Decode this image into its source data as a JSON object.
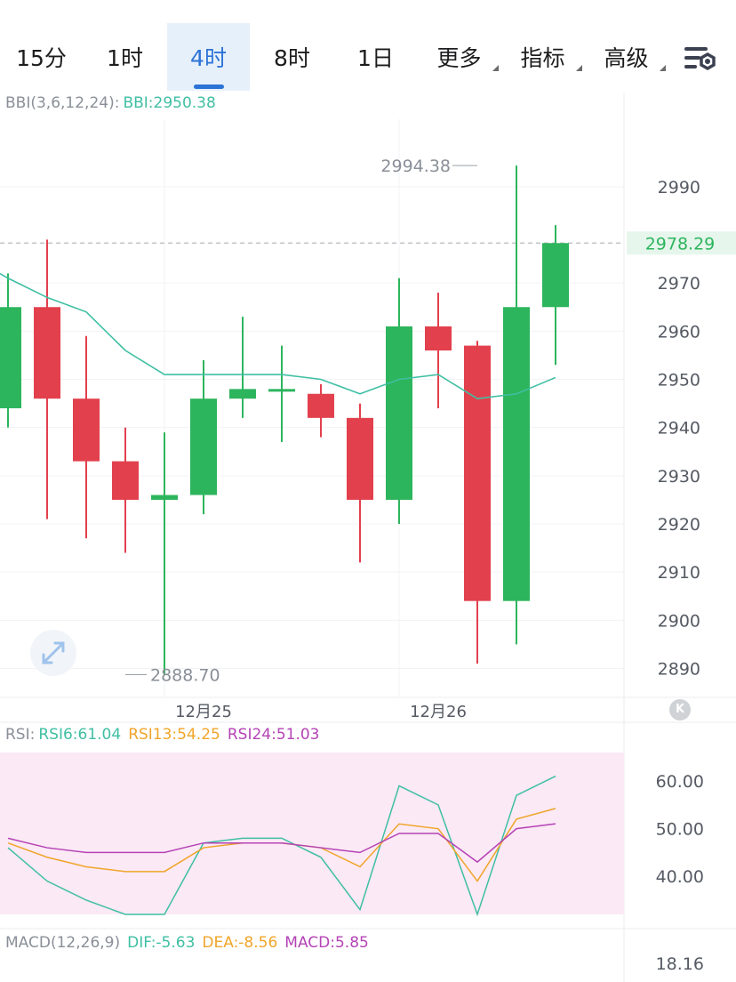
{
  "tabs": [
    {
      "label": "15分",
      "active": false,
      "dropdown": false
    },
    {
      "label": "1时",
      "active": false,
      "dropdown": false
    },
    {
      "label": "4时",
      "active": true,
      "dropdown": false
    },
    {
      "label": "8时",
      "active": false,
      "dropdown": false
    },
    {
      "label": "1日",
      "active": false,
      "dropdown": false
    },
    {
      "label": "更多",
      "active": false,
      "dropdown": true
    },
    {
      "label": "指标",
      "active": false,
      "dropdown": true
    },
    {
      "label": "高级",
      "active": false,
      "dropdown": true
    }
  ],
  "icons": {
    "settings": "chart-settings-icon",
    "expand": "expand-arrows-icon",
    "collapse": "collapse-chevron-icon"
  },
  "colors": {
    "up": "#2db55d",
    "down": "#e2404d",
    "bbi": "#3fbfa3",
    "rsi6": "#3fbfa3",
    "rsi13": "#f0a52a",
    "rsi24": "#b543b5",
    "accent": "#2b73d6"
  },
  "main_legend": {
    "name": "BBI(3,6,12,24):",
    "value": "BBI:2950.38"
  },
  "rsi_legend": {
    "name": "RSI:",
    "rsi6": "RSI6:61.04",
    "rsi13": "RSI13:54.25",
    "rsi24": "RSI24:51.03"
  },
  "macd_legend": {
    "name": "MACD(12,26,9)",
    "dif": "DIF:-5.63",
    "dea": "DEA:-8.56",
    "macd": "MACD:5.85"
  },
  "chart_data": [
    {
      "type": "candlestick",
      "ylim": [
        2884,
        3004
      ],
      "y_ticks": [
        2890,
        2900,
        2910,
        2920,
        2930,
        2940,
        2950,
        2960,
        2970,
        2990
      ],
      "x_labels": [
        {
          "label": "12月25",
          "index": 4
        },
        {
          "label": "12月26",
          "index": 10
        }
      ],
      "current_price": "2978.29",
      "high_marker": {
        "label": "2994.38",
        "value": 2994.38,
        "index": 12
      },
      "low_marker": {
        "label": "2888.70",
        "value": 2888.7,
        "index": 3
      },
      "candles": [
        {
          "open": 2944,
          "high": 2972,
          "low": 2940,
          "close": 2965
        },
        {
          "open": 2965,
          "high": 2979,
          "low": 2921,
          "close": 2946
        },
        {
          "open": 2946,
          "high": 2959,
          "low": 2917,
          "close": 2933
        },
        {
          "open": 2933,
          "high": 2940,
          "low": 2914,
          "close": 2925
        },
        {
          "open": 2925,
          "high": 2939,
          "low": 2888.7,
          "close": 2926
        },
        {
          "open": 2926,
          "high": 2954,
          "low": 2922,
          "close": 2946
        },
        {
          "open": 2946,
          "high": 2963,
          "low": 2942,
          "close": 2948
        },
        {
          "open": 2948,
          "high": 2957,
          "low": 2937,
          "close": 2948
        },
        {
          "open": 2947,
          "high": 2949,
          "low": 2938,
          "close": 2942
        },
        {
          "open": 2942,
          "high": 2945,
          "low": 2912,
          "close": 2925
        },
        {
          "open": 2925,
          "high": 2971,
          "low": 2920,
          "close": 2961
        },
        {
          "open": 2961,
          "high": 2968,
          "low": 2944,
          "close": 2956
        },
        {
          "open": 2957,
          "high": 2958,
          "low": 2891,
          "close": 2904
        },
        {
          "open": 2904,
          "high": 2994.38,
          "low": 2895,
          "close": 2965
        },
        {
          "open": 2965,
          "high": 2982,
          "low": 2953,
          "close": 2978.29
        }
      ],
      "bbi": [
        2971,
        2967,
        2964,
        2956,
        2951,
        2951,
        2951,
        2951,
        2950,
        2947,
        2950,
        2951,
        2946,
        2947,
        2950.38
      ]
    },
    {
      "type": "line",
      "title": "RSI",
      "y_ticks": [
        "60.00",
        "50.00",
        "40.00"
      ],
      "ylim": [
        32,
        66
      ],
      "series": [
        {
          "name": "RSI6",
          "values": [
            46,
            39,
            35,
            32,
            32,
            47,
            48,
            48,
            44,
            33,
            59,
            55,
            32,
            57,
            61.04
          ]
        },
        {
          "name": "RSI13",
          "values": [
            47,
            44,
            42,
            41,
            41,
            46,
            47,
            47,
            46,
            42,
            51,
            50,
            39,
            52,
            54.25
          ]
        },
        {
          "name": "RSI24",
          "values": [
            48,
            46,
            45,
            45,
            45,
            47,
            47,
            47,
            46,
            45,
            49,
            49,
            43,
            50,
            51.03
          ]
        }
      ]
    },
    {
      "type": "bar",
      "title": "MACD",
      "y_ticks": [
        "18.16"
      ]
    }
  ]
}
